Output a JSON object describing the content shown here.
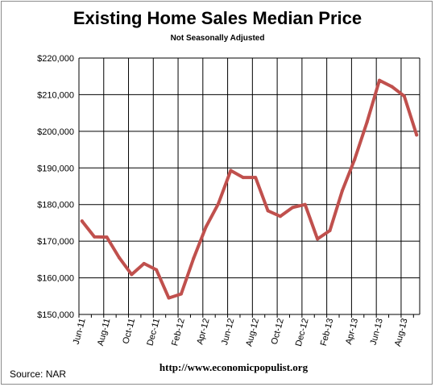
{
  "header": {
    "title": "Existing Home Sales Median Price",
    "subtitle": "Not Seasonally Adjusted"
  },
  "footer": {
    "source": "Source:  NAR",
    "url": "http://www.economicpopulist.org"
  },
  "colors": {
    "line": "#c0504d",
    "grid": "#000000"
  },
  "chart_data": {
    "type": "line",
    "title": "Existing Home Sales Median Price",
    "subtitle": "Not Seasonally Adjusted",
    "xlabel": "",
    "ylabel": "",
    "ylim": [
      150000,
      220000
    ],
    "y_ticks": [
      150000,
      160000,
      170000,
      180000,
      190000,
      200000,
      210000,
      220000
    ],
    "y_tick_labels": [
      "$150,000",
      "$160,000",
      "$170,000",
      "$180,000",
      "$190,000",
      "$200,000",
      "$210,000",
      "$220,000"
    ],
    "x_tick_labels": [
      "Jun-11",
      "Aug-11",
      "Oct-11",
      "Dec-11",
      "Feb-12",
      "Apr-12",
      "Jun-12",
      "Aug-12",
      "Oct-12",
      "Dec-12",
      "Feb-13",
      "Apr-13",
      "Jun-13",
      "Aug-13"
    ],
    "x": [
      "Jun-11",
      "Jul-11",
      "Aug-11",
      "Sep-11",
      "Oct-11",
      "Nov-11",
      "Dec-11",
      "Jan-12",
      "Feb-12",
      "Mar-12",
      "Apr-12",
      "May-12",
      "Jun-12",
      "Jul-12",
      "Aug-12",
      "Sep-12",
      "Oct-12",
      "Nov-12",
      "Dec-12",
      "Jan-13",
      "Feb-13",
      "Mar-13",
      "Apr-13",
      "May-13",
      "Jun-13",
      "Jul-13",
      "Aug-13",
      "Sep-13"
    ],
    "series": [
      {
        "values": [
          175500,
          171200,
          171100,
          165500,
          160900,
          163900,
          162200,
          154500,
          155600,
          165300,
          173900,
          180200,
          189300,
          187400,
          187400,
          178300,
          176800,
          179200,
          180000,
          170600,
          172900,
          183800,
          192300,
          202500,
          213900,
          212200,
          209600,
          199000
        ]
      }
    ],
    "grid": true,
    "legend": "none"
  }
}
